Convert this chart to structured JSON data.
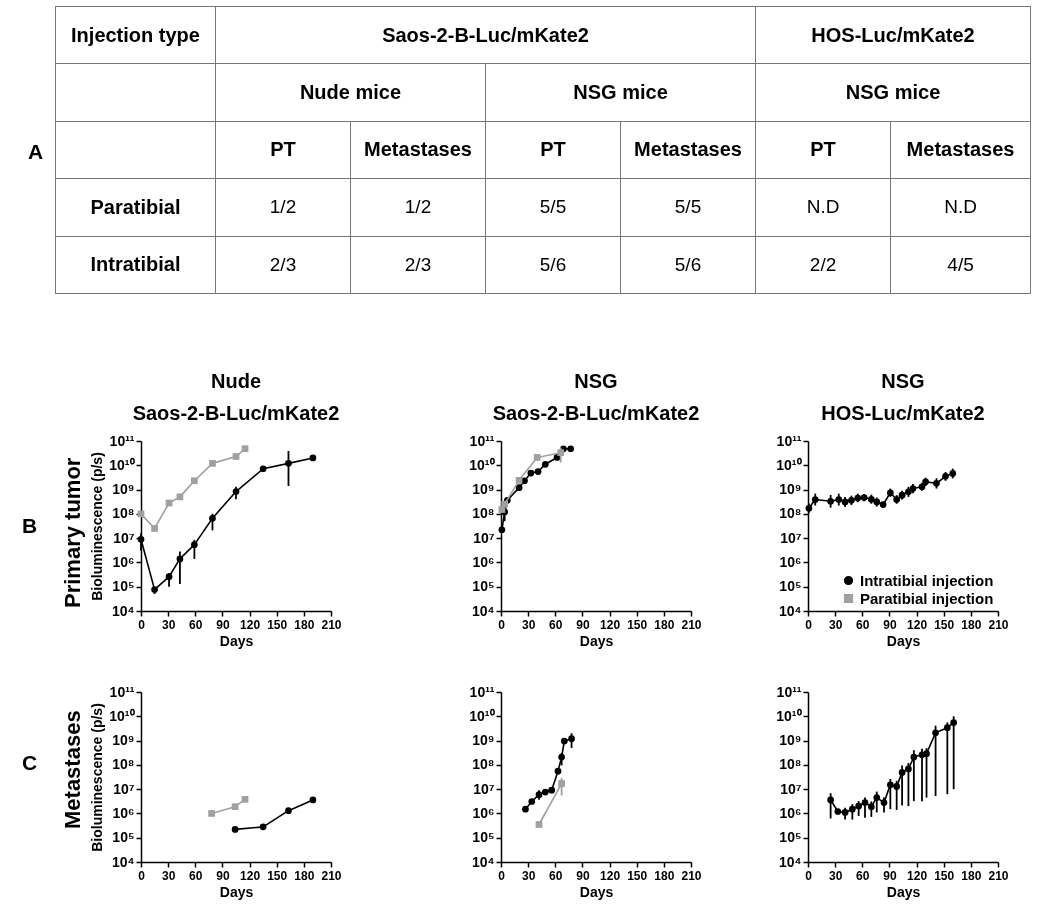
{
  "chart_data": [
    {
      "type": "other",
      "annotations": [
        "A",
        "Injection type",
        "Saos-2-B-Luc/mKate2",
        "HOS-Luc/mKate2",
        "Nude mice",
        "NSG mice",
        "NSG mice",
        "PT",
        "Metastases",
        "PT",
        "Metastases",
        "PT",
        "Metastases",
        "Paratibial",
        "1/2",
        "1/2",
        "5/5",
        "5/5",
        "N.D",
        "N.D",
        "Intratibial",
        "2/3",
        "2/3",
        "5/6",
        "5/6",
        "2/2",
        "4/5"
      ]
    },
    {
      "type": "line",
      "title": "Nude",
      "subtitle": "Saos-2-B-Luc/mKate2",
      "xlabel": "Days",
      "ylabel": "Bioluminescence (p/s)",
      "annotations": [
        "B",
        "Primary tumor"
      ],
      "log": true,
      "xlim": [
        0,
        210
      ],
      "xticks": [
        0,
        30,
        60,
        90,
        120,
        150,
        180,
        210
      ],
      "ylim": [
        10000.0,
        100000000000.0
      ],
      "yticks": [
        {
          "value": 10000.0,
          "label": "10⁴"
        },
        {
          "value": 100000.0,
          "label": "10⁵"
        },
        {
          "value": 1000000.0,
          "label": "10⁶"
        },
        {
          "value": 10000000.0,
          "label": "10⁷"
        },
        {
          "value": 100000000.0,
          "label": "10⁸"
        },
        {
          "value": 1000000000.0,
          "label": "10⁹"
        },
        {
          "value": 10000000000.0,
          "label": "10¹⁰"
        },
        {
          "value": 100000000000.0,
          "label": "10¹¹"
        }
      ],
      "series": [
        {
          "color": "#000000",
          "marker": "circle",
          "x": [
            0,
            15,
            31,
            43,
            59,
            79,
            105,
            135,
            163,
            190
          ],
          "values": [
            9000000.0,
            76000.0,
            260000.0,
            1400000.0,
            5400000.0,
            66000000.0,
            830000000.0,
            7200000000.0,
            12000000000.0,
            20000000000.0
          ],
          "errors": [
            [
              3000000.0,
              16000000.0
            ],
            [
              50000.0,
              93000.0
            ],
            [
              100000.0,
              360000.0
            ],
            [
              130000.0,
              2800000.0
            ],
            [
              1400000.0,
              8500000.0
            ],
            [
              21000000.0,
              100000000.0
            ],
            [
              400000000.0,
              1300000000.0
            ],
            null,
            [
              1400000000.0,
              39000000000.0
            ],
            null
          ]
        },
        {
          "color": "#a0a0a0",
          "marker": "square",
          "x": [
            0,
            15,
            31,
            43,
            59,
            79,
            105,
            115
          ],
          "values": [
            100000000.0,
            25000000.0,
            280000000.0,
            500000000.0,
            2300000000.0,
            12000000000.0,
            23000000000.0,
            48000000000.0
          ]
        }
      ]
    },
    {
      "type": "line",
      "title": "NSG",
      "subtitle": "Saos-2-B-Luc/mKate2",
      "xlabel": "Days",
      "log": true,
      "xlim": [
        0,
        210
      ],
      "xticks": [
        0,
        30,
        60,
        90,
        120,
        150,
        180,
        210
      ],
      "ylim": [
        10000.0,
        100000000000.0
      ],
      "yticks": [
        {
          "value": 10000.0,
          "label": "10⁴"
        },
        {
          "value": 100000.0,
          "label": "10⁵"
        },
        {
          "value": 1000000.0,
          "label": "10⁶"
        },
        {
          "value": 10000000.0,
          "label": "10⁷"
        },
        {
          "value": 100000000.0,
          "label": "10⁸"
        },
        {
          "value": 1000000000.0,
          "label": "10⁹"
        },
        {
          "value": 10000000000.0,
          "label": "10¹⁰"
        },
        {
          "value": 100000000000.0,
          "label": "10¹¹"
        }
      ],
      "series": [
        {
          "color": "#000000",
          "marker": "circle",
          "x": [
            1,
            4,
            7,
            20,
            26,
            33,
            41,
            49,
            62,
            69,
            77
          ],
          "values": [
            22000000.0,
            120000000.0,
            360000000.0,
            1200000000.0,
            2300000000.0,
            4800000000.0,
            5500000000.0,
            11000000000.0,
            21000000000.0,
            48000000000.0,
            48000000000.0
          ],
          "errors": [
            null,
            [
              50000000.0,
              200000000.0
            ],
            null,
            null,
            null,
            null,
            null,
            null,
            null,
            null,
            null
          ]
        },
        {
          "color": "#a0a0a0",
          "marker": "square",
          "x": [
            1,
            4,
            20,
            40,
            66
          ],
          "values": [
            150000000.0,
            250000000.0,
            2400000000.0,
            21000000000.0,
            33000000000.0
          ],
          "errors": [
            null,
            null,
            null,
            null,
            [
              13000000000.0,
              54000000000.0
            ]
          ]
        }
      ]
    },
    {
      "type": "line",
      "title": "NSG",
      "subtitle": "HOS-Luc/mKate2",
      "xlabel": "Days",
      "log": true,
      "legend": "bottom right",
      "xlim": [
        0,
        210
      ],
      "xticks": [
        0,
        30,
        60,
        90,
        120,
        150,
        180,
        210
      ],
      "ylim": [
        10000.0,
        100000000000.0
      ],
      "yticks": [
        {
          "value": 10000.0,
          "label": "10⁴"
        },
        {
          "value": 100000.0,
          "label": "10⁵"
        },
        {
          "value": 1000000.0,
          "label": "10⁶"
        },
        {
          "value": 10000000.0,
          "label": "10⁷"
        },
        {
          "value": 100000000.0,
          "label": "10⁸"
        },
        {
          "value": 1000000000.0,
          "label": "10⁹"
        },
        {
          "value": 10000000000.0,
          "label": "10¹⁰"
        },
        {
          "value": 100000000000.0,
          "label": "10¹¹"
        }
      ],
      "series": [
        {
          "name": "Intratibial injection",
          "color": "#000000",
          "marker": "circle",
          "x": [
            1,
            8,
            25,
            34,
            41,
            48,
            55,
            62,
            70,
            76,
            83,
            91,
            98,
            104,
            111,
            116,
            126,
            130,
            142,
            152,
            160
          ],
          "values": [
            170000000.0,
            390000000.0,
            330000000.0,
            390000000.0,
            310000000.0,
            360000000.0,
            450000000.0,
            470000000.0,
            400000000.0,
            310000000.0,
            240000000.0,
            740000000.0,
            390000000.0,
            590000000.0,
            810000000.0,
            1100000000.0,
            1300000000.0,
            2100000000.0,
            1800000000.0,
            3500000000.0,
            4600000000.0
          ],
          "errors": [
            [
              110000000.0,
              270000000.0
            ],
            [
              220000000.0,
              680000000.0
            ],
            [
              180000000.0,
              600000000.0
            ],
            [
              220000000.0,
              680000000.0
            ],
            [
              190000000.0,
              500000000.0
            ],
            [
              230000000.0,
              560000000.0
            ],
            [
              300000000.0,
              680000000.0
            ],
            [
              330000000.0,
              660000000.0
            ],
            [
              260000000.0,
              620000000.0
            ],
            [
              200000000.0,
              470000000.0
            ],
            null,
            [
              500000000.0,
              1100000000.0
            ],
            [
              260000000.0,
              590000000.0
            ],
            [
              390000000.0,
              890000000.0
            ],
            [
              500000000.0,
              1300000000.0
            ],
            [
              700000000.0,
              1700000000.0
            ],
            [
              900000000.0,
              1900000000.0
            ],
            [
              1400000000.0,
              3100000000.0
            ],
            [
              1100000000.0,
              2900000000.0
            ],
            [
              2300000000.0,
              5300000000.0
            ],
            [
              2900000000.0,
              7300000000.0
            ]
          ]
        },
        {
          "name": "Paratibial injection",
          "color": "#a0a0a0",
          "marker": "square"
        }
      ]
    },
    {
      "type": "line",
      "xlabel": "Days",
      "ylabel": "Bioluminescence (p/s)",
      "annotations": [
        "C",
        "Metastases"
      ],
      "log": true,
      "xlim": [
        0,
        210
      ],
      "xticks": [
        0,
        30,
        60,
        90,
        120,
        150,
        180,
        210
      ],
      "ylim": [
        10000.0,
        100000000000.0
      ],
      "yticks": [
        {
          "value": 10000.0,
          "label": "10⁴"
        },
        {
          "value": 100000.0,
          "label": "10⁵"
        },
        {
          "value": 1000000.0,
          "label": "10⁶"
        },
        {
          "value": 10000000.0,
          "label": "10⁷"
        },
        {
          "value": 100000000.0,
          "label": "10⁸"
        },
        {
          "value": 1000000000.0,
          "label": "10⁹"
        },
        {
          "value": 10000000000.0,
          "label": "10¹⁰"
        },
        {
          "value": 100000000000.0,
          "label": "10¹¹"
        }
      ],
      "series": [
        {
          "color": "#000000",
          "marker": "circle",
          "x": [
            104,
            135,
            163,
            190
          ],
          "values": [
            220000.0,
            280000.0,
            1300000.0,
            3600000.0
          ]
        },
        {
          "color": "#a0a0a0",
          "marker": "square",
          "x": [
            78,
            104,
            115
          ],
          "values": [
            1000000.0,
            1900000.0,
            3800000.0
          ]
        }
      ]
    },
    {
      "type": "line",
      "xlabel": "Days",
      "log": true,
      "xlim": [
        0,
        210
      ],
      "xticks": [
        0,
        30,
        60,
        90,
        120,
        150,
        180,
        210
      ],
      "ylim": [
        10000.0,
        100000000000.0
      ],
      "yticks": [
        {
          "value": 10000.0,
          "label": "10⁴"
        },
        {
          "value": 100000.0,
          "label": "10⁵"
        },
        {
          "value": 1000000.0,
          "label": "10⁶"
        },
        {
          "value": 10000000.0,
          "label": "10⁷"
        },
        {
          "value": 100000000.0,
          "label": "10⁸"
        },
        {
          "value": 1000000000.0,
          "label": "10⁹"
        },
        {
          "value": 10000000000.0,
          "label": "10¹⁰"
        },
        {
          "value": 100000000000.0,
          "label": "10¹¹"
        }
      ],
      "series": [
        {
          "color": "#000000",
          "marker": "circle",
          "x": [
            27,
            34,
            42,
            49,
            56,
            63,
            67,
            70,
            78
          ],
          "values": [
            1500000.0,
            3100000.0,
            5900000.0,
            7600000.0,
            9100000.0,
            55000000.0,
            210000000.0,
            960000000.0,
            1200000000.0
          ],
          "errors": [
            null,
            null,
            [
              3700000.0,
              8900000.0
            ],
            null,
            null,
            null,
            [
              95000000.0,
              300000000.0
            ],
            null,
            [
              500000000.0,
              2000000000.0
            ]
          ]
        },
        {
          "color": "#a0a0a0",
          "marker": "square",
          "x": [
            42,
            67
          ],
          "values": [
            350000.0,
            17000000.0
          ],
          "errors": [
            null,
            [
              5500000.0,
              29000000.0
            ]
          ]
        }
      ]
    },
    {
      "type": "line",
      "xlabel": "Days",
      "log": true,
      "xlim": [
        0,
        210
      ],
      "xticks": [
        0,
        30,
        60,
        90,
        120,
        150,
        180,
        210
      ],
      "ylim": [
        10000.0,
        100000000000.0
      ],
      "yticks": [
        {
          "value": 10000.0,
          "label": "10⁴"
        },
        {
          "value": 100000.0,
          "label": "10⁵"
        },
        {
          "value": 1000000.0,
          "label": "10⁶"
        },
        {
          "value": 10000000.0,
          "label": "10⁷"
        },
        {
          "value": 100000000.0,
          "label": "10⁸"
        },
        {
          "value": 1000000000.0,
          "label": "10⁹"
        },
        {
          "value": 10000000000.0,
          "label": "10¹⁰"
        },
        {
          "value": 100000000000.0,
          "label": "10¹¹"
        }
      ],
      "series": [
        {
          "color": "#000000",
          "marker": "circle",
          "x": [
            25,
            33,
            41,
            49,
            56,
            63,
            70,
            76,
            84,
            91,
            98,
            104,
            111,
            117,
            126,
            131,
            141,
            154,
            161
          ],
          "values": [
            3600000.0,
            1200000.0,
            1100000.0,
            1500000.0,
            2000000.0,
            2800000.0,
            1900000.0,
            4500000.0,
            2800000.0,
            15000000.0,
            13000000.0,
            49000000.0,
            68000000.0,
            210000000.0,
            260000000.0,
            290000000.0,
            2100000000.0,
            3400000000.0,
            5500000000.0
          ],
          "errors": [
            [
              620000.0,
              6800000.0
            ],
            null,
            [
              560000.0,
              1700000.0
            ],
            [
              560000.0,
              2400000.0
            ],
            [
              780000.0,
              3200000.0
            ],
            [
              660000.0,
              4500000.0
            ],
            [
              720000.0,
              3100000.0
            ],
            [
              1100000.0,
              7900000.0
            ],
            [
              1100000.0,
              4500000.0
            ],
            [
              1500000.0,
              26000000.0
            ],
            [
              1400000.0,
              22000000.0
            ],
            [
              2100000.0,
              93000000.0
            ],
            [
              2000000.0,
              120000000.0
            ],
            [
              3200000.0,
              400000000.0
            ],
            [
              3200000.0,
              460000000.0
            ],
            [
              4500000.0,
              490000000.0
            ],
            [
              5200000.0,
              4100000000.0
            ],
            [
              6200000.0,
              5600000000.0
            ],
            [
              10000000.0,
              10000000000.0
            ]
          ]
        }
      ]
    }
  ]
}
